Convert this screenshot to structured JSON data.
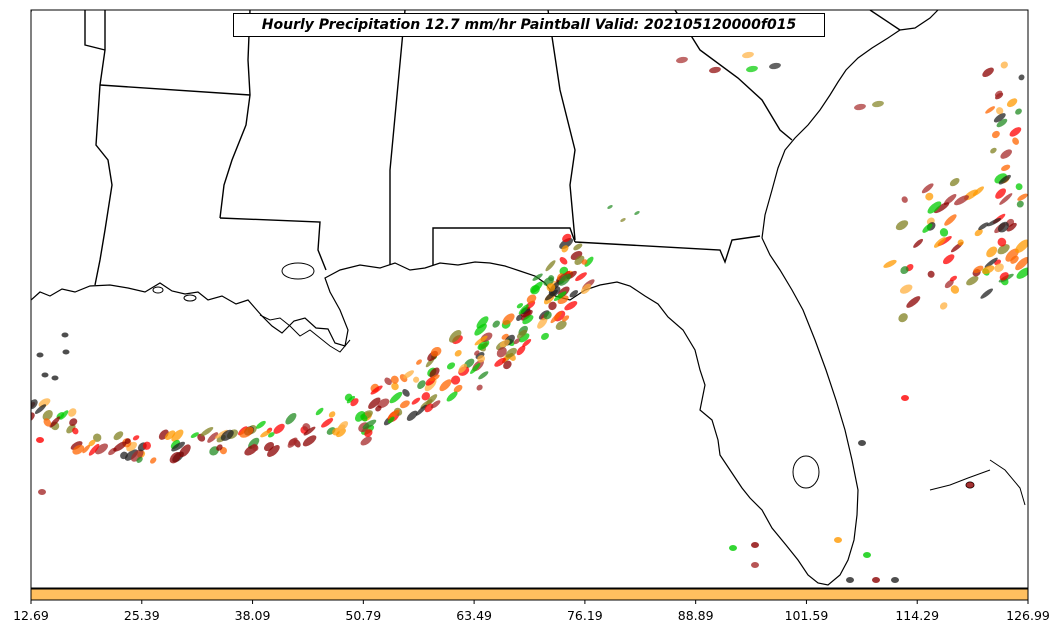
{
  "title": "Hourly Precipitation 12.7 mm/hr Paintball Valid: 202105120000f015",
  "colorbar": {
    "fill_color": "#ffbf5f",
    "ticks": [
      "12.69",
      "25.39",
      "38.09",
      "50.79",
      "63.49",
      "76.19",
      "88.89",
      "101.59",
      "114.29",
      "126.99"
    ]
  },
  "colors": {
    "land_border": "#000000",
    "ocean": "#ffffff",
    "paintball_palette": [
      "#ff0000",
      "#ff6600",
      "#ff9900",
      "#ffb040",
      "#00cc00",
      "#228b22",
      "#808020",
      "#8b0000",
      "#a52a2a",
      "#222222"
    ]
  },
  "map": {
    "region": "Southeastern United States and Gulf of Mexico",
    "features": [
      "state borders",
      "coastlines",
      "Florida peninsula",
      "Gulf of Mexico"
    ]
  }
}
